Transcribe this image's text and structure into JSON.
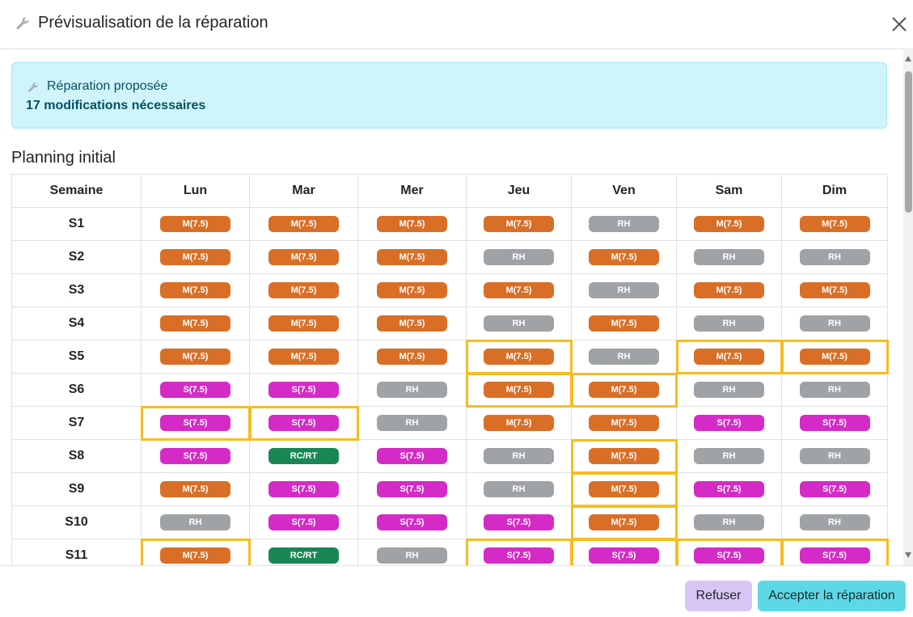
{
  "header": {
    "title": "Prévisualisation de la réparation",
    "icon": "wrench-icon",
    "close_icon": "close-icon"
  },
  "alert": {
    "title": "Réparation proposée",
    "count": "17 modifications nécessaires",
    "icon": "wrench-icon"
  },
  "section_title": "Planning initial",
  "table": {
    "headers": [
      "Semaine",
      "Lun",
      "Mar",
      "Mer",
      "Jeu",
      "Ven",
      "Sam",
      "Dim"
    ],
    "rows": [
      {
        "week": "S1",
        "cells": [
          "M(7.5)",
          "M(7.5)",
          "M(7.5)",
          "M(7.5)",
          "RH",
          "M(7.5)",
          "M(7.5)"
        ],
        "highlight": [
          false,
          false,
          false,
          false,
          false,
          false,
          false
        ]
      },
      {
        "week": "S2",
        "cells": [
          "M(7.5)",
          "M(7.5)",
          "M(7.5)",
          "RH",
          "M(7.5)",
          "RH",
          "RH"
        ],
        "highlight": [
          false,
          false,
          false,
          false,
          false,
          false,
          false
        ]
      },
      {
        "week": "S3",
        "cells": [
          "M(7.5)",
          "M(7.5)",
          "M(7.5)",
          "M(7.5)",
          "RH",
          "M(7.5)",
          "M(7.5)"
        ],
        "highlight": [
          false,
          false,
          false,
          false,
          false,
          false,
          false
        ]
      },
      {
        "week": "S4",
        "cells": [
          "M(7.5)",
          "M(7.5)",
          "M(7.5)",
          "RH",
          "M(7.5)",
          "RH",
          "RH"
        ],
        "highlight": [
          false,
          false,
          false,
          false,
          false,
          false,
          false
        ]
      },
      {
        "week": "S5",
        "cells": [
          "M(7.5)",
          "M(7.5)",
          "M(7.5)",
          "M(7.5)",
          "RH",
          "M(7.5)",
          "M(7.5)"
        ],
        "highlight": [
          false,
          false,
          false,
          true,
          false,
          true,
          true
        ]
      },
      {
        "week": "S6",
        "cells": [
          "S(7.5)",
          "S(7.5)",
          "RH",
          "M(7.5)",
          "M(7.5)",
          "RH",
          "RH"
        ],
        "highlight": [
          false,
          false,
          false,
          true,
          true,
          false,
          false
        ]
      },
      {
        "week": "S7",
        "cells": [
          "S(7.5)",
          "S(7.5)",
          "RH",
          "M(7.5)",
          "M(7.5)",
          "S(7.5)",
          "S(7.5)"
        ],
        "highlight": [
          true,
          true,
          false,
          false,
          false,
          false,
          false
        ]
      },
      {
        "week": "S8",
        "cells": [
          "S(7.5)",
          "RC/RT",
          "S(7.5)",
          "RH",
          "M(7.5)",
          "RH",
          "RH"
        ],
        "highlight": [
          false,
          false,
          false,
          false,
          true,
          false,
          false
        ]
      },
      {
        "week": "S9",
        "cells": [
          "M(7.5)",
          "S(7.5)",
          "S(7.5)",
          "RH",
          "M(7.5)",
          "S(7.5)",
          "S(7.5)"
        ],
        "highlight": [
          false,
          false,
          false,
          false,
          true,
          false,
          false
        ]
      },
      {
        "week": "S10",
        "cells": [
          "RH",
          "S(7.5)",
          "S(7.5)",
          "S(7.5)",
          "M(7.5)",
          "RH",
          "RH"
        ],
        "highlight": [
          false,
          false,
          false,
          false,
          true,
          false,
          false
        ]
      },
      {
        "week": "S11",
        "cells": [
          "M(7.5)",
          "RC/RT",
          "RH",
          "S(7.5)",
          "S(7.5)",
          "S(7.5)",
          "S(7.5)"
        ],
        "highlight": [
          true,
          false,
          false,
          true,
          true,
          true,
          true
        ]
      }
    ]
  },
  "colors": {
    "M": "#d96f27",
    "S": "#d42bc6",
    "RH": "#a0a3a6",
    "RC": "#198754",
    "highlight": "#f5bd1f"
  },
  "footer": {
    "refuse_label": "Refuser",
    "accept_label": "Accepter la réparation"
  }
}
